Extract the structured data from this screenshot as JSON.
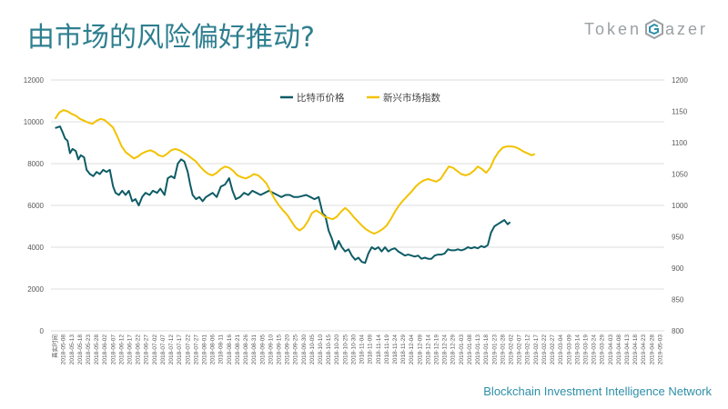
{
  "slide": {
    "title": "由市场的风险偏好推动?",
    "logo_left": "Token",
    "logo_right": "azer",
    "footer": "Blockchain Investment Intelligence Network"
  },
  "colors": {
    "title": "#2e7f8f",
    "btc": "#0e5c66",
    "index": "#f2c200",
    "grid": "#dcdcdc",
    "axis_text": "#595959"
  },
  "chart_data": {
    "type": "line",
    "title": "",
    "legend_position": "top-center",
    "grid": true,
    "x_ticks": [
      "真实时间",
      "2018-05-08",
      "2018-05-13",
      "2018-05-18",
      "2018-05-23",
      "2018-05-28",
      "2018-06-02",
      "2018-06-07",
      "2018-06-12",
      "2018-06-17",
      "2018-06-22",
      "2018-06-27",
      "2018-07-02",
      "2018-07-07",
      "2018-07-12",
      "2018-07-17",
      "2018-07-22",
      "2018-07-27",
      "2018-08-01",
      "2018-08-06",
      "2018-08-11",
      "2018-08-16",
      "2018-08-21",
      "2018-08-26",
      "2018-08-31",
      "2018-09-05",
      "2018-09-10",
      "2018-09-15",
      "2018-09-20",
      "2018-09-25",
      "2018-09-30",
      "2018-10-05",
      "2018-10-10",
      "2018-10-15",
      "2018-10-20",
      "2018-10-25",
      "2018-10-30",
      "2018-11-04",
      "2018-11-09",
      "2018-11-14",
      "2018-11-19",
      "2018-11-24",
      "2018-11-29",
      "2018-12-04",
      "2018-12-09",
      "2018-12-14",
      "2018-12-19",
      "2018-12-24",
      "2018-12-29",
      "2019-01-03",
      "2019-01-08",
      "2019-01-13",
      "2019-01-18",
      "2019-01-23",
      "2019-01-28",
      "2019-02-02",
      "2019-02-07",
      "2019-02-12",
      "2019-02-17",
      "2019-02-22",
      "2019-02-27",
      "2019-03-04",
      "2019-03-09",
      "2019-03-14",
      "2019-03-19",
      "2019-03-24",
      "2019-03-29",
      "2019-04-03",
      "2019-04-08",
      "2019-04-13",
      "2019-04-18",
      "2019-04-23",
      "2019-04-28",
      "2019-05-03"
    ],
    "y_left": {
      "min": 0,
      "max": 12000,
      "ticks": [
        0,
        2000,
        4000,
        6000,
        8000,
        10000,
        12000
      ]
    },
    "y_right": {
      "min": 800,
      "max": 1200,
      "ticks": [
        800,
        850,
        900,
        950,
        1000,
        1050,
        1100,
        1150,
        1200
      ]
    },
    "series": [
      {
        "name": "比特币价格",
        "axis": "left",
        "points": [
          [
            0,
            9700
          ],
          [
            0.6,
            9780
          ],
          [
            0.9,
            9500
          ],
          [
            1.2,
            9200
          ],
          [
            1.5,
            9100
          ],
          [
            1.8,
            8500
          ],
          [
            2.1,
            8700
          ],
          [
            2.5,
            8600
          ],
          [
            2.8,
            8200
          ],
          [
            3.1,
            8400
          ],
          [
            3.5,
            8300
          ],
          [
            3.8,
            7700
          ],
          [
            4.2,
            7500
          ],
          [
            4.6,
            7400
          ],
          [
            5.0,
            7600
          ],
          [
            5.4,
            7500
          ],
          [
            5.8,
            7700
          ],
          [
            6.2,
            7600
          ],
          [
            6.6,
            7700
          ],
          [
            7.0,
            6900
          ],
          [
            7.3,
            6600
          ],
          [
            7.7,
            6500
          ],
          [
            8.1,
            6700
          ],
          [
            8.5,
            6500
          ],
          [
            8.9,
            6700
          ],
          [
            9.3,
            6200
          ],
          [
            9.7,
            6300
          ],
          [
            10.1,
            6000
          ],
          [
            10.5,
            6400
          ],
          [
            10.9,
            6600
          ],
          [
            11.4,
            6500
          ],
          [
            11.8,
            6700
          ],
          [
            12.3,
            6600
          ],
          [
            12.7,
            6800
          ],
          [
            13.2,
            6500
          ],
          [
            13.6,
            7300
          ],
          [
            14.0,
            7400
          ],
          [
            14.4,
            7300
          ],
          [
            14.8,
            8000
          ],
          [
            15.2,
            8200
          ],
          [
            15.6,
            8100
          ],
          [
            16.0,
            7600
          ],
          [
            16.3,
            7000
          ],
          [
            16.6,
            6500
          ],
          [
            17.0,
            6300
          ],
          [
            17.4,
            6400
          ],
          [
            17.8,
            6200
          ],
          [
            18.2,
            6400
          ],
          [
            18.6,
            6500
          ],
          [
            19.0,
            6600
          ],
          [
            19.5,
            6400
          ],
          [
            20.0,
            6900
          ],
          [
            20.5,
            7000
          ],
          [
            21.0,
            7300
          ],
          [
            21.4,
            6700
          ],
          [
            21.8,
            6300
          ],
          [
            22.3,
            6400
          ],
          [
            22.8,
            6600
          ],
          [
            23.3,
            6500
          ],
          [
            23.8,
            6700
          ],
          [
            24.3,
            6600
          ],
          [
            24.8,
            6500
          ],
          [
            25.3,
            6600
          ],
          [
            25.8,
            6700
          ],
          [
            26.3,
            6600
          ],
          [
            26.8,
            6500
          ],
          [
            27.3,
            6400
          ],
          [
            27.8,
            6500
          ],
          [
            28.3,
            6500
          ],
          [
            28.8,
            6400
          ],
          [
            29.3,
            6400
          ],
          [
            29.8,
            6450
          ],
          [
            30.3,
            6500
          ],
          [
            30.8,
            6400
          ],
          [
            31.3,
            6300
          ],
          [
            31.8,
            6400
          ],
          [
            32.3,
            5600
          ],
          [
            32.6,
            5500
          ],
          [
            33.0,
            4800
          ],
          [
            33.4,
            4400
          ],
          [
            33.8,
            3900
          ],
          [
            34.2,
            4300
          ],
          [
            34.6,
            4000
          ],
          [
            35.0,
            3800
          ],
          [
            35.4,
            3900
          ],
          [
            35.8,
            3600
          ],
          [
            36.2,
            3400
          ],
          [
            36.6,
            3500
          ],
          [
            37.0,
            3300
          ],
          [
            37.4,
            3250
          ],
          [
            37.8,
            3700
          ],
          [
            38.2,
            4000
          ],
          [
            38.6,
            3900
          ],
          [
            39.0,
            4000
          ],
          [
            39.4,
            3800
          ],
          [
            39.8,
            4000
          ],
          [
            40.2,
            3800
          ],
          [
            40.6,
            3900
          ],
          [
            41.0,
            3950
          ],
          [
            41.4,
            3800
          ],
          [
            41.8,
            3700
          ],
          [
            42.2,
            3600
          ],
          [
            42.6,
            3650
          ],
          [
            43.0,
            3600
          ],
          [
            43.4,
            3550
          ],
          [
            43.8,
            3600
          ],
          [
            44.2,
            3450
          ],
          [
            44.6,
            3500
          ],
          [
            45.0,
            3450
          ],
          [
            45.4,
            3450
          ],
          [
            45.8,
            3600
          ],
          [
            46.2,
            3650
          ],
          [
            46.6,
            3650
          ],
          [
            47.0,
            3700
          ],
          [
            47.4,
            3900
          ],
          [
            47.8,
            3850
          ],
          [
            48.2,
            3850
          ],
          [
            48.6,
            3900
          ],
          [
            49.0,
            3850
          ],
          [
            49.4,
            3900
          ],
          [
            49.8,
            4000
          ],
          [
            50.2,
            3950
          ],
          [
            50.6,
            4000
          ],
          [
            51.0,
            3950
          ],
          [
            51.4,
            4050
          ],
          [
            51.8,
            4000
          ],
          [
            52.2,
            4100
          ],
          [
            52.6,
            4700
          ],
          [
            53.0,
            5000
          ],
          [
            53.4,
            5100
          ],
          [
            53.8,
            5200
          ],
          [
            54.2,
            5300
          ],
          [
            54.6,
            5100
          ],
          [
            54.9,
            5200
          ]
        ]
      },
      {
        "name": "新兴市场指数",
        "axis": "right",
        "points": [
          [
            0,
            1138
          ],
          [
            0.5,
            1148
          ],
          [
            1.0,
            1152
          ],
          [
            1.5,
            1150
          ],
          [
            2.0,
            1146
          ],
          [
            2.5,
            1143
          ],
          [
            3.0,
            1138
          ],
          [
            3.5,
            1135
          ],
          [
            4.0,
            1132
          ],
          [
            4.5,
            1130
          ],
          [
            5.0,
            1135
          ],
          [
            5.5,
            1138
          ],
          [
            6.0,
            1136
          ],
          [
            6.5,
            1130
          ],
          [
            7.0,
            1124
          ],
          [
            7.5,
            1110
          ],
          [
            8.0,
            1095
          ],
          [
            8.5,
            1085
          ],
          [
            9.0,
            1080
          ],
          [
            9.5,
            1075
          ],
          [
            10.0,
            1078
          ],
          [
            10.5,
            1083
          ],
          [
            11.0,
            1086
          ],
          [
            11.5,
            1088
          ],
          [
            12.0,
            1085
          ],
          [
            12.5,
            1080
          ],
          [
            13.0,
            1078
          ],
          [
            13.5,
            1082
          ],
          [
            14.0,
            1088
          ],
          [
            14.5,
            1090
          ],
          [
            15.0,
            1088
          ],
          [
            15.5,
            1084
          ],
          [
            16.0,
            1080
          ],
          [
            16.5,
            1075
          ],
          [
            17.0,
            1070
          ],
          [
            17.5,
            1062
          ],
          [
            18.0,
            1055
          ],
          [
            18.5,
            1050
          ],
          [
            19.0,
            1048
          ],
          [
            19.5,
            1052
          ],
          [
            20.0,
            1058
          ],
          [
            20.5,
            1062
          ],
          [
            21.0,
            1060
          ],
          [
            21.5,
            1055
          ],
          [
            22.0,
            1048
          ],
          [
            22.5,
            1045
          ],
          [
            23.0,
            1043
          ],
          [
            23.5,
            1046
          ],
          [
            24.0,
            1050
          ],
          [
            24.5,
            1048
          ],
          [
            25.0,
            1042
          ],
          [
            25.5,
            1035
          ],
          [
            26.0,
            1022
          ],
          [
            26.5,
            1010
          ],
          [
            27.0,
            1000
          ],
          [
            27.5,
            992
          ],
          [
            28.0,
            985
          ],
          [
            28.5,
            975
          ],
          [
            29.0,
            965
          ],
          [
            29.5,
            960
          ],
          [
            30.0,
            965
          ],
          [
            30.5,
            975
          ],
          [
            31.0,
            988
          ],
          [
            31.5,
            992
          ],
          [
            32.0,
            988
          ],
          [
            32.5,
            982
          ],
          [
            33.0,
            980
          ],
          [
            33.5,
            978
          ],
          [
            34.0,
            982
          ],
          [
            34.5,
            990
          ],
          [
            35.0,
            996
          ],
          [
            35.5,
            990
          ],
          [
            36.0,
            982
          ],
          [
            36.5,
            975
          ],
          [
            37.0,
            968
          ],
          [
            37.5,
            962
          ],
          [
            38.0,
            958
          ],
          [
            38.5,
            955
          ],
          [
            39.0,
            958
          ],
          [
            39.5,
            962
          ],
          [
            40.0,
            968
          ],
          [
            40.5,
            978
          ],
          [
            41.0,
            990
          ],
          [
            41.5,
            1000
          ],
          [
            42.0,
            1008
          ],
          [
            42.5,
            1015
          ],
          [
            43.0,
            1022
          ],
          [
            43.5,
            1030
          ],
          [
            44.0,
            1036
          ],
          [
            44.5,
            1040
          ],
          [
            45.0,
            1042
          ],
          [
            45.5,
            1040
          ],
          [
            46.0,
            1038
          ],
          [
            46.5,
            1042
          ],
          [
            47.0,
            1052
          ],
          [
            47.5,
            1062
          ],
          [
            48.0,
            1060
          ],
          [
            48.5,
            1055
          ],
          [
            49.0,
            1050
          ],
          [
            49.5,
            1048
          ],
          [
            50.0,
            1050
          ],
          [
            50.5,
            1055
          ],
          [
            51.0,
            1062
          ],
          [
            51.5,
            1058
          ],
          [
            52.0,
            1052
          ],
          [
            52.5,
            1060
          ],
          [
            53.0,
            1075
          ],
          [
            53.5,
            1085
          ],
          [
            54.0,
            1092
          ],
          [
            54.5,
            1094
          ],
          [
            55.0,
            1094
          ],
          [
            55.5,
            1093
          ],
          [
            56.0,
            1090
          ],
          [
            56.5,
            1086
          ],
          [
            57.0,
            1083
          ],
          [
            57.5,
            1080
          ],
          [
            57.9,
            1082
          ]
        ]
      }
    ]
  }
}
